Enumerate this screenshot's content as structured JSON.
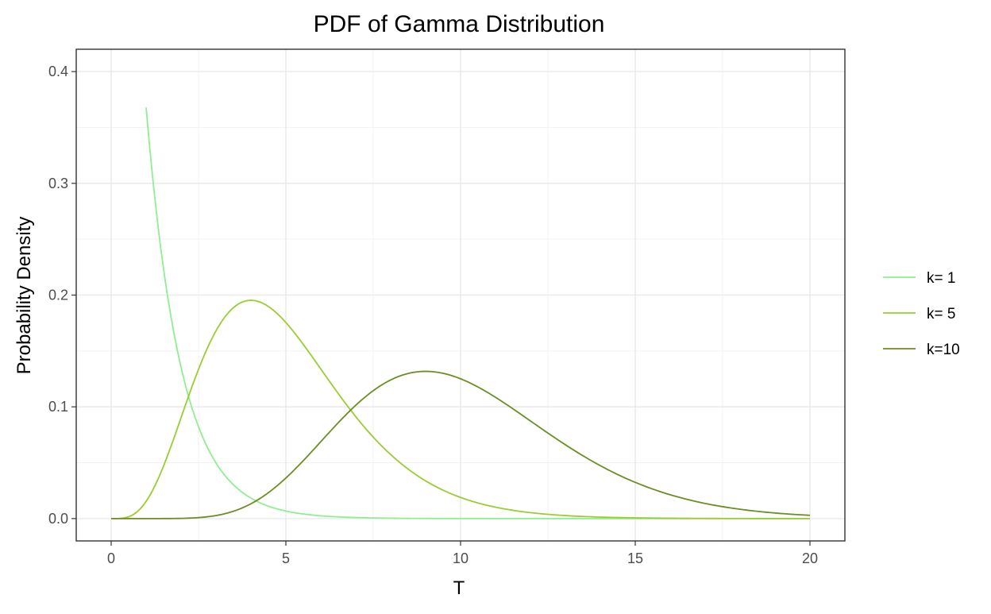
{
  "chart_data": {
    "type": "line",
    "title": "PDF of Gamma Distribution",
    "xlabel": "T",
    "ylabel": "Probability Density",
    "xlim": [
      -1,
      21
    ],
    "ylim": [
      -0.02,
      0.42
    ],
    "x_ticks": [
      "0",
      "5",
      "10",
      "15",
      "20"
    ],
    "y_ticks": [
      "0.0",
      "0.1",
      "0.2",
      "0.3",
      "0.4"
    ],
    "x_tick_values": [
      0,
      5,
      10,
      15,
      20
    ],
    "y_tick_values": [
      0.0,
      0.1,
      0.2,
      0.3,
      0.4
    ],
    "x_minor": [
      2.5,
      7.5,
      12.5,
      17.5
    ],
    "y_minor": [
      0.05,
      0.15,
      0.25,
      0.35
    ],
    "grid": true,
    "legend_position": "right",
    "distribution": "gamma",
    "scale": 1,
    "series": [
      {
        "name": "k= 1",
        "shape": 1,
        "x_range": [
          1,
          20
        ],
        "color": "#90ee90"
      },
      {
        "name": "k= 5",
        "shape": 5,
        "x_range": [
          0,
          20
        ],
        "color": "#9acd32"
      },
      {
        "name": "k=10",
        "shape": 10,
        "x_range": [
          0,
          20
        ],
        "color": "#6b8e23"
      }
    ]
  }
}
